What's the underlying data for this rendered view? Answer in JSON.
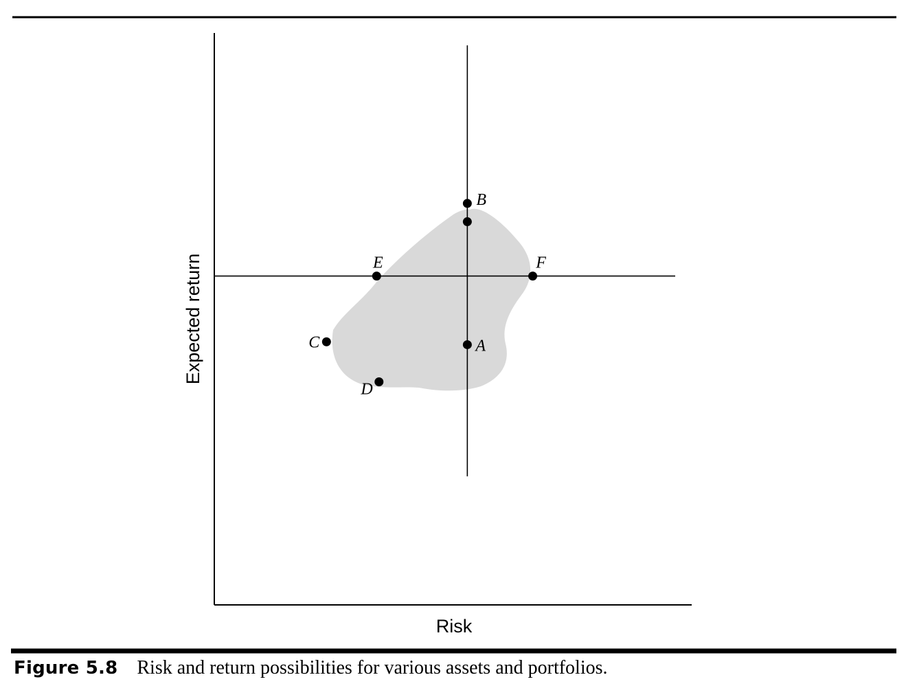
{
  "figure": {
    "number_label": "Figure 5.8",
    "caption": "Risk and return possibilities for various assets and portfolios."
  },
  "chart_data": {
    "type": "scatter",
    "title": "",
    "xlabel": "Risk",
    "ylabel": "Expected return",
    "xlim": [
      0,
      10
    ],
    "ylim": [
      0,
      10
    ],
    "grid": false,
    "legend": "none",
    "ticks_shown": false,
    "reference_lines": {
      "vertical_x": 5.3,
      "horizontal_y": 5.75
    },
    "points": [
      {
        "label": "A",
        "x": 5.3,
        "y": 4.55
      },
      {
        "label": "B",
        "x": 5.3,
        "y": 7.02
      },
      {
        "label": "",
        "x": 5.3,
        "y": 6.7
      },
      {
        "label": "C",
        "x": 2.35,
        "y": 4.6
      },
      {
        "label": "D",
        "x": 3.45,
        "y": 3.9
      },
      {
        "label": "E",
        "x": 3.4,
        "y": 5.75
      },
      {
        "label": "F",
        "x": 6.67,
        "y": 5.75
      }
    ],
    "feasible_region_color": "#d9d9d9",
    "point_color": "#000000"
  }
}
